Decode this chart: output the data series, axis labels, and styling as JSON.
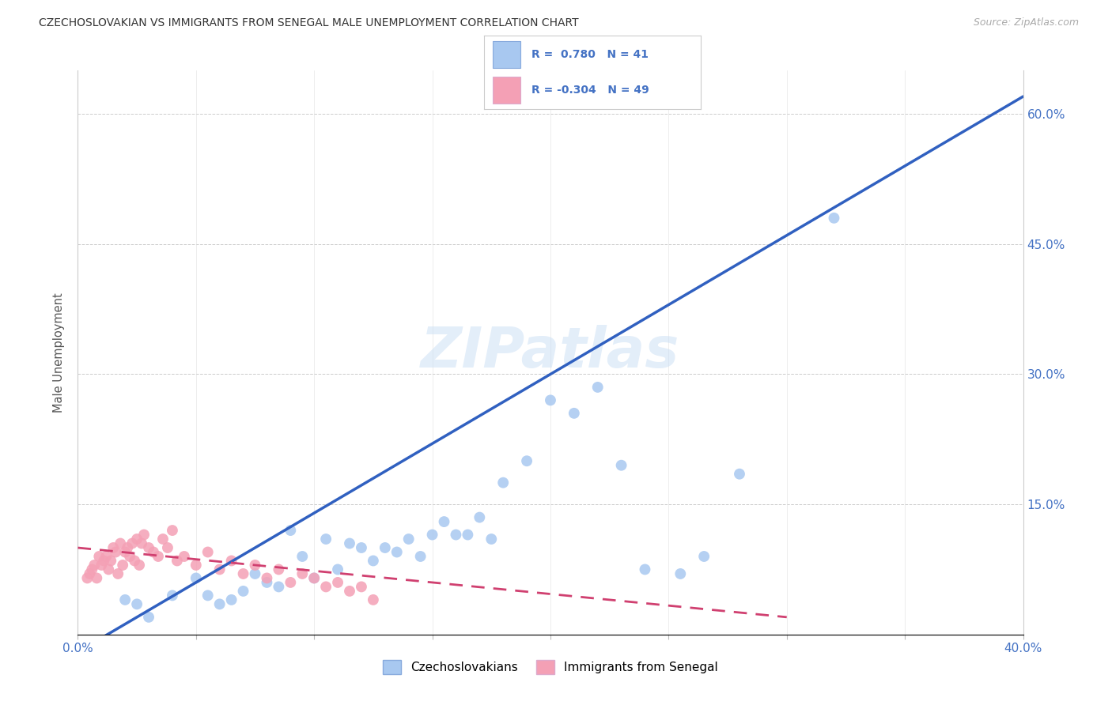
{
  "title": "CZECHOSLOVAKIAN VS IMMIGRANTS FROM SENEGAL MALE UNEMPLOYMENT CORRELATION CHART",
  "source": "Source: ZipAtlas.com",
  "ylabel": "Male Unemployment",
  "xlim": [
    0.0,
    0.4
  ],
  "ylim": [
    0.0,
    0.65
  ],
  "y_ticks_right": [
    0.0,
    0.15,
    0.3,
    0.45,
    0.6
  ],
  "grid_color": "#cccccc",
  "background_color": "#ffffff",
  "blue_color": "#a8c8f0",
  "pink_color": "#f4a0b5",
  "blue_line_color": "#3060c0",
  "pink_line_color": "#d04070",
  "watermark": "ZIPatlas",
  "legend_R_blue": "0.780",
  "legend_N_blue": "41",
  "legend_R_pink": "-0.304",
  "legend_N_pink": "49",
  "blue_scatter_x": [
    0.02,
    0.025,
    0.03,
    0.04,
    0.05,
    0.055,
    0.06,
    0.065,
    0.07,
    0.075,
    0.08,
    0.085,
    0.09,
    0.095,
    0.1,
    0.105,
    0.11,
    0.115,
    0.12,
    0.125,
    0.13,
    0.135,
    0.14,
    0.145,
    0.15,
    0.155,
    0.16,
    0.165,
    0.17,
    0.175,
    0.18,
    0.19,
    0.2,
    0.21,
    0.22,
    0.23,
    0.24,
    0.255,
    0.265,
    0.28,
    0.32
  ],
  "blue_scatter_y": [
    0.04,
    0.035,
    0.02,
    0.045,
    0.065,
    0.045,
    0.035,
    0.04,
    0.05,
    0.07,
    0.06,
    0.055,
    0.12,
    0.09,
    0.065,
    0.11,
    0.075,
    0.105,
    0.1,
    0.085,
    0.1,
    0.095,
    0.11,
    0.09,
    0.115,
    0.13,
    0.115,
    0.115,
    0.135,
    0.11,
    0.175,
    0.2,
    0.27,
    0.255,
    0.285,
    0.195,
    0.075,
    0.07,
    0.09,
    0.185,
    0.48
  ],
  "pink_scatter_x": [
    0.004,
    0.005,
    0.006,
    0.007,
    0.008,
    0.009,
    0.01,
    0.011,
    0.012,
    0.013,
    0.014,
    0.015,
    0.016,
    0.017,
    0.018,
    0.019,
    0.02,
    0.021,
    0.022,
    0.023,
    0.024,
    0.025,
    0.026,
    0.027,
    0.028,
    0.03,
    0.032,
    0.034,
    0.036,
    0.038,
    0.04,
    0.042,
    0.045,
    0.05,
    0.055,
    0.06,
    0.065,
    0.07,
    0.075,
    0.08,
    0.085,
    0.09,
    0.095,
    0.1,
    0.105,
    0.11,
    0.115,
    0.12,
    0.125
  ],
  "pink_scatter_y": [
    0.065,
    0.07,
    0.075,
    0.08,
    0.065,
    0.09,
    0.08,
    0.085,
    0.09,
    0.075,
    0.085,
    0.1,
    0.095,
    0.07,
    0.105,
    0.08,
    0.095,
    0.1,
    0.09,
    0.105,
    0.085,
    0.11,
    0.08,
    0.105,
    0.115,
    0.1,
    0.095,
    0.09,
    0.11,
    0.1,
    0.12,
    0.085,
    0.09,
    0.08,
    0.095,
    0.075,
    0.085,
    0.07,
    0.08,
    0.065,
    0.075,
    0.06,
    0.07,
    0.065,
    0.055,
    0.06,
    0.05,
    0.055,
    0.04
  ],
  "blue_line_x": [
    0.0,
    0.4
  ],
  "blue_line_y": [
    -0.02,
    0.62
  ],
  "pink_line_x": [
    0.0,
    0.3
  ],
  "pink_line_y": [
    0.1,
    0.02
  ]
}
